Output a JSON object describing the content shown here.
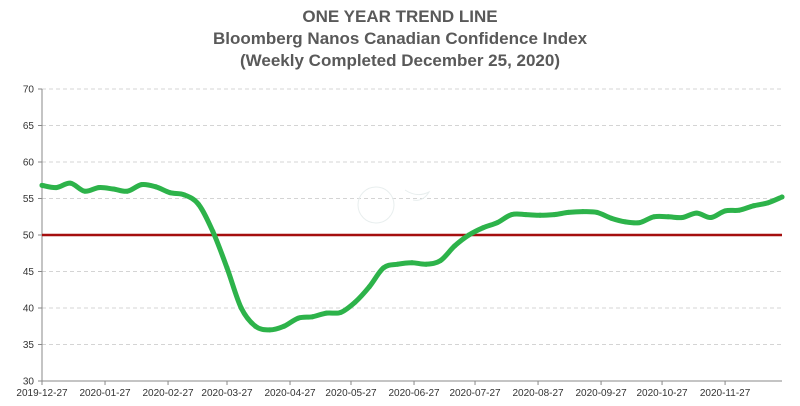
{
  "chart_data": {
    "type": "line",
    "title": "ONE YEAR TREND LINE",
    "subtitle": "Bloomberg Nanos Canadian Confidence Index",
    "subtitle2": "(Weekly Completed December 25, 2020)",
    "ylim": [
      30,
      70
    ],
    "yticks": [
      30,
      35,
      40,
      45,
      50,
      55,
      60,
      65,
      70
    ],
    "xlim": [
      "2019-12-27",
      "2020-12-25"
    ],
    "xticks": [
      "2019-12-27",
      "2020-01-27",
      "2020-02-27",
      "2020-03-27",
      "2020-04-27",
      "2020-05-27",
      "2020-06-27",
      "2020-07-27",
      "2020-08-27",
      "2020-09-27",
      "2020-10-27",
      "2020-11-27"
    ],
    "grid": true,
    "reference_line": {
      "value": 50,
      "color": "#a50f0f"
    },
    "series": [
      {
        "color": "#2db34a",
        "x": [
          "2019-12-27",
          "2020-01-03",
          "2020-01-10",
          "2020-01-17",
          "2020-01-24",
          "2020-01-31",
          "2020-02-07",
          "2020-02-14",
          "2020-02-21",
          "2020-02-28",
          "2020-03-06",
          "2020-03-13",
          "2020-03-20",
          "2020-03-27",
          "2020-04-03",
          "2020-04-10",
          "2020-04-17",
          "2020-04-24",
          "2020-05-01",
          "2020-05-08",
          "2020-05-15",
          "2020-05-22",
          "2020-05-29",
          "2020-06-05",
          "2020-06-12",
          "2020-06-19",
          "2020-06-26",
          "2020-07-03",
          "2020-07-10",
          "2020-07-17",
          "2020-07-24",
          "2020-07-31",
          "2020-08-07",
          "2020-08-14",
          "2020-08-21",
          "2020-08-28",
          "2020-09-04",
          "2020-09-11",
          "2020-09-18",
          "2020-09-25",
          "2020-10-02",
          "2020-10-09",
          "2020-10-16",
          "2020-10-23",
          "2020-10-30",
          "2020-11-06",
          "2020-11-13",
          "2020-11-20",
          "2020-11-27",
          "2020-12-04",
          "2020-12-11",
          "2020-12-18",
          "2020-12-25"
        ],
        "values": [
          56.8,
          56.5,
          57.1,
          56.0,
          56.5,
          56.3,
          56.0,
          56.9,
          56.6,
          55.8,
          55.5,
          54.2,
          50.5,
          45.5,
          40.0,
          37.5,
          37.0,
          37.5,
          38.6,
          38.8,
          39.3,
          39.4,
          40.8,
          42.9,
          45.5,
          46.0,
          46.2,
          46.0,
          46.5,
          48.5,
          50.0,
          51.0,
          51.7,
          52.8,
          52.8,
          52.7,
          52.8,
          53.1,
          53.2,
          53.1,
          52.3,
          51.8,
          51.7,
          52.5,
          52.5,
          52.4,
          53.0,
          52.4,
          53.3,
          53.4,
          54.0,
          54.4,
          55.2
        ]
      }
    ]
  }
}
